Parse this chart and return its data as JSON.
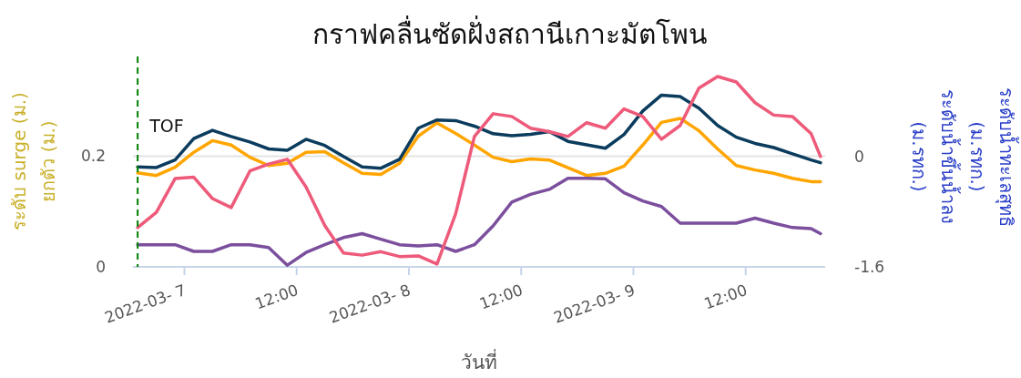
{
  "chart_data": {
    "type": "line",
    "title": "กราฟคลื่นซัดฝั่งสถานีเกาะมัตโพน",
    "xlabel": "วันที่",
    "ylabel": "ระดับ surge (ม.)\nยกตัว (ม.)",
    "y2label": "ระดับน้ำทะเลสุทธิ\n(ม.รทก.)\nระดับน้ำขึ้นน้ำลง\n(ม.รทก.)",
    "x": [
      "2022-03-06T19:00",
      "2022-03-06T21:00",
      "2022-03-06T23:00",
      "2022-03-07T01:00",
      "2022-03-07T03:00",
      "2022-03-07T05:00",
      "2022-03-07T07:00",
      "2022-03-07T09:00",
      "2022-03-07T11:00",
      "2022-03-07T13:00",
      "2022-03-07T15:00",
      "2022-03-07T17:00",
      "2022-03-07T19:00",
      "2022-03-07T21:00",
      "2022-03-07T23:00",
      "2022-03-08T01:00",
      "2022-03-08T03:00",
      "2022-03-08T05:00",
      "2022-03-08T07:00",
      "2022-03-08T09:00",
      "2022-03-08T11:00",
      "2022-03-08T13:00",
      "2022-03-08T15:00",
      "2022-03-08T17:00",
      "2022-03-08T19:00",
      "2022-03-08T21:00",
      "2022-03-08T23:00",
      "2022-03-09T01:00",
      "2022-03-09T03:00",
      "2022-03-09T05:00",
      "2022-03-09T07:00",
      "2022-03-09T09:00",
      "2022-03-09T11:00",
      "2022-03-09T13:00",
      "2022-03-09T15:00",
      "2022-03-09T17:00",
      "2022-03-09T19:00",
      "2022-03-09T20:00"
    ],
    "series": [
      {
        "color": "#ffa500",
        "values": [
          0.17,
          0.165,
          0.18,
          0.207,
          0.228,
          0.22,
          0.198,
          0.183,
          0.187,
          0.207,
          0.208,
          0.188,
          0.169,
          0.167,
          0.187,
          0.236,
          0.26,
          0.241,
          0.22,
          0.198,
          0.19,
          0.195,
          0.193,
          0.179,
          0.165,
          0.169,
          0.182,
          0.22,
          0.261,
          0.268,
          0.246,
          0.213,
          0.183,
          0.175,
          0.169,
          0.16,
          0.154,
          0.154
        ]
      },
      {
        "color": "#7b4f9d",
        "values": [
          0.04,
          0.04,
          0.04,
          0.028,
          0.028,
          0.04,
          0.04,
          0.035,
          0.003,
          0.026,
          0.04,
          0.053,
          0.06,
          0.05,
          0.04,
          0.038,
          0.04,
          0.028,
          0.04,
          0.074,
          0.117,
          0.131,
          0.14,
          0.16,
          0.16,
          0.159,
          0.134,
          0.119,
          0.109,
          0.079,
          0.079,
          0.079,
          0.079,
          0.088,
          0.079,
          0.071,
          0.069,
          0.06
        ]
      },
      {
        "color": "#0b3c5d",
        "axis": "y2",
        "values": [
          -0.15,
          -0.16,
          -0.05,
          0.26,
          0.38,
          0.29,
          0.21,
          0.11,
          0.09,
          0.25,
          0.16,
          0,
          -0.15,
          -0.17,
          -0.04,
          0.41,
          0.53,
          0.52,
          0.44,
          0.33,
          0.3,
          0.32,
          0.36,
          0.22,
          0.17,
          0.12,
          0.32,
          0.66,
          0.89,
          0.87,
          0.7,
          0.45,
          0.28,
          0.19,
          0.13,
          0.04,
          -0.05,
          -0.09
        ]
      },
      {
        "color": "#ee5a7a",
        "axis": "y2",
        "values": [
          -1.03,
          -0.81,
          -0.32,
          -0.3,
          -0.61,
          -0.74,
          -0.21,
          -0.11,
          -0.04,
          -0.44,
          -1.0,
          -1.4,
          -1.43,
          -1.38,
          -1.45,
          -1.44,
          -1.56,
          -0.83,
          0.29,
          0.62,
          0.58,
          0.41,
          0.36,
          0.29,
          0.49,
          0.41,
          0.69,
          0.58,
          0.25,
          0.45,
          0.99,
          1.16,
          1.08,
          0.78,
          0.6,
          0.58,
          0.33,
          0
        ]
      }
    ],
    "xlim": [
      "2022-03-06T18:30",
      "2022-03-09T20:30"
    ],
    "xticks": [
      {
        "value": "2022-03-07T00:00",
        "label": "2022-03- 7"
      },
      {
        "value": "2022-03-07T12:00",
        "label": "12:00"
      },
      {
        "value": "2022-03-08T00:00",
        "label": "2022-03- 8"
      },
      {
        "value": "2022-03-08T12:00",
        "label": "12:00"
      },
      {
        "value": "2022-03-09T00:00",
        "label": "2022-03- 9"
      },
      {
        "value": "2022-03-09T12:00",
        "label": "12:00"
      }
    ],
    "ylim": [
      0,
      0.38
    ],
    "yticks": [
      0,
      0.2
    ],
    "y2lim": [
      -1.6,
      1.45
    ],
    "y2ticks": [
      0,
      -1.6
    ],
    "grid": "y",
    "ref_lines": [
      {
        "axis": "x",
        "value": "2022-03-06T19:00",
        "label": "TOF",
        "color": "#008000",
        "line_style": "dashed"
      }
    ]
  }
}
